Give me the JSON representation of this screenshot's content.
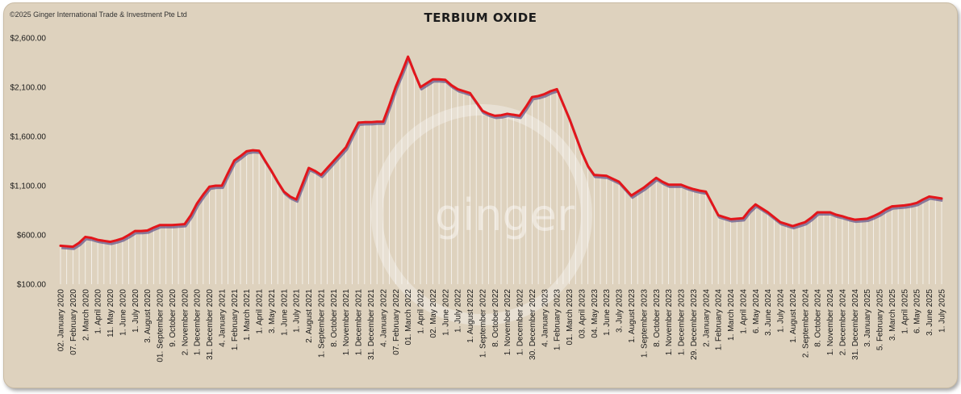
{
  "copyright": "©2025 Ginger International Trade & Investment Pte Ltd",
  "watermark": "ginger",
  "colors": {
    "background": "#ded2be",
    "line": "#e3161b",
    "shadow": "#6a5a8c",
    "drop": "#ffffff"
  },
  "chart_data": {
    "type": "line",
    "title": "TERBIUM OXIDE",
    "xlabel": "",
    "ylabel": "",
    "ylim": [
      100,
      2600
    ],
    "yticks": [
      "$100.00",
      "$600.00",
      "$1,100.00",
      "$1,600.00",
      "$2,100.00",
      "$2,600.00"
    ],
    "ytick_values": [
      100,
      600,
      1100,
      1600,
      2100,
      2600
    ],
    "grid": false,
    "legend": "none",
    "x": [
      "02. January 2020",
      "",
      "07. February 2020",
      "",
      "2. March 2020",
      "",
      "1. April 2020",
      "",
      "11. May 2020",
      "",
      "1. June 2020",
      "",
      "1. July 2020",
      "",
      "3. August 2020",
      "",
      "01. September 2020",
      "",
      "9. October 2020",
      "",
      "2. November 2020",
      "",
      "1. December 2020",
      "",
      "31. December 2020",
      "",
      "4. January 2021",
      "",
      "1. February 2021",
      "",
      "1. March 2021",
      "",
      "1. April 2021",
      "",
      "3. May 2021",
      "",
      "1. June 2021",
      "",
      "1. July 2021",
      "",
      "2. August 2021",
      "",
      "1. September 2021",
      "",
      "8. October 2021",
      "",
      "1. November 2021",
      "",
      "1. December 2021",
      "",
      "31. December 2021",
      "",
      "4. January 2022",
      "",
      "07. February 2022",
      "",
      "01. March 2022",
      "",
      "1. April 2022",
      "",
      "02. May 2022",
      "",
      "1. June 2022",
      "",
      "1. July 2022",
      "",
      "1. August 2022",
      "",
      "1. September 2022",
      "",
      "8. October 2022",
      "",
      "1. November 2022",
      "",
      "1. December 2022",
      "",
      "30. December 2022",
      "",
      "4. January 2023",
      "",
      "1. February 2023",
      "",
      "01. March 2023",
      "",
      "03. April 2023",
      "",
      "04. May 2023",
      "",
      "1. June 2023",
      "",
      "3. July 2023",
      "",
      "1. August 2023",
      "",
      "1. September 2023",
      "",
      "8. October 2023",
      "",
      "1. November 2023",
      "",
      "1. December 2023",
      "",
      "29. December 2023",
      "",
      "2. January 2024",
      "",
      "1. February 2024",
      "",
      "1. March 2024",
      "",
      "1. April 2024",
      "",
      "6. May 2024",
      "",
      "3. June 2024",
      "",
      "1. July 2024",
      "",
      "1. August 2024",
      "",
      "2. September 2024",
      "",
      "8. October 2024",
      "",
      "1. November 2024",
      "",
      "2. December 2024",
      "",
      "31. December 2024",
      "",
      "3. January 2025",
      "",
      "5. February 2025",
      "",
      "3. March 2025",
      "",
      "1. April 2025",
      "",
      "6. May 2025",
      "",
      "3. June 2025",
      "",
      "1. July 2025"
    ],
    "series": [
      {
        "values": [
          490,
          485,
          480,
          520,
          580,
          570,
          550,
          540,
          530,
          545,
          565,
          600,
          640,
          640,
          645,
          675,
          700,
          700,
          700,
          705,
          710,
          800,
          920,
          1010,
          1090,
          1100,
          1100,
          1230,
          1355,
          1400,
          1450,
          1460,
          1455,
          1350,
          1250,
          1140,
          1040,
          990,
          960,
          1120,
          1280,
          1250,
          1210,
          1280,
          1350,
          1420,
          1490,
          1620,
          1740,
          1745,
          1745,
          1750,
          1750,
          1920,
          2100,
          2250,
          2410,
          2250,
          2100,
          2140,
          2180,
          2180,
          2175,
          2120,
          2080,
          2060,
          2040,
          1950,
          1860,
          1830,
          1810,
          1815,
          1830,
          1820,
          1810,
          1900,
          2000,
          2010,
          2030,
          2060,
          2080,
          1930,
          1780,
          1610,
          1440,
          1300,
          1210,
          1205,
          1200,
          1170,
          1140,
          1070,
          1000,
          1040,
          1080,
          1130,
          1180,
          1140,
          1110,
          1110,
          1110,
          1085,
          1065,
          1050,
          1040,
          920,
          800,
          780,
          760,
          765,
          770,
          850,
          910,
          870,
          830,
          780,
          730,
          710,
          690,
          710,
          730,
          775,
          830,
          830,
          830,
          805,
          790,
          770,
          755,
          760,
          765,
          790,
          820,
          860,
          890,
          895,
          900,
          910,
          925,
          960,
          990,
          980,
          970
        ]
      }
    ]
  }
}
